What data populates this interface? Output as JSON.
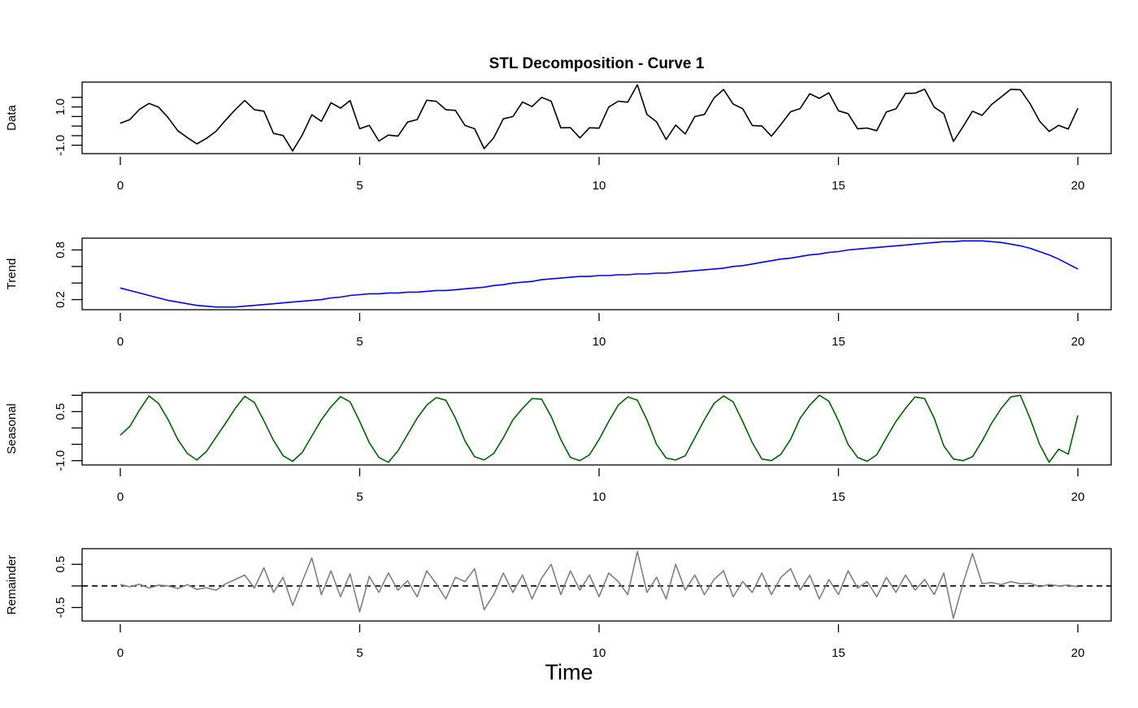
{
  "chart_data": {
    "type": "line",
    "title": "STL Decomposition - Curve 1",
    "xlabel": "Time",
    "x": {
      "start": 0,
      "step": 0.2,
      "count": 101
    },
    "xlim": [
      0,
      20
    ],
    "xticks": [
      0,
      5,
      10,
      15,
      20
    ],
    "xtick_labels": [
      "0",
      "5",
      "10",
      "15",
      "20"
    ],
    "panels": [
      {
        "name": "Data",
        "ylabel": "Data",
        "color": "#000000",
        "yticks": [
          -1.0,
          -0.5,
          0.0,
          0.5,
          1.0,
          1.5
        ],
        "ytick_labels": [
          {
            "value": -1.0,
            "text": "-1.0"
          },
          {
            "value": 1.0,
            "text": "1.0"
          }
        ]
      },
      {
        "name": "Trend",
        "ylabel": "Trend",
        "color": "#0000FF",
        "yticks": [
          0.2,
          0.4,
          0.6,
          0.8
        ],
        "ytick_labels": [
          {
            "value": 0.2,
            "text": "0.2"
          },
          {
            "value": 0.8,
            "text": "0.8"
          }
        ],
        "values": [
          0.34,
          0.31,
          0.28,
          0.25,
          0.22,
          0.19,
          0.17,
          0.15,
          0.13,
          0.12,
          0.11,
          0.11,
          0.11,
          0.12,
          0.13,
          0.14,
          0.15,
          0.16,
          0.17,
          0.18,
          0.19,
          0.2,
          0.22,
          0.23,
          0.25,
          0.26,
          0.27,
          0.27,
          0.28,
          0.28,
          0.29,
          0.29,
          0.3,
          0.31,
          0.31,
          0.32,
          0.33,
          0.34,
          0.35,
          0.37,
          0.38,
          0.4,
          0.41,
          0.42,
          0.44,
          0.45,
          0.46,
          0.47,
          0.48,
          0.48,
          0.49,
          0.49,
          0.5,
          0.5,
          0.51,
          0.51,
          0.52,
          0.52,
          0.53,
          0.54,
          0.55,
          0.56,
          0.57,
          0.58,
          0.6,
          0.61,
          0.63,
          0.65,
          0.67,
          0.69,
          0.7,
          0.72,
          0.74,
          0.75,
          0.77,
          0.78,
          0.8,
          0.81,
          0.82,
          0.83,
          0.84,
          0.85,
          0.86,
          0.87,
          0.88,
          0.89,
          0.9,
          0.9,
          0.91,
          0.91,
          0.91,
          0.9,
          0.89,
          0.87,
          0.85,
          0.82,
          0.78,
          0.74,
          0.69,
          0.63,
          0.57
        ]
      },
      {
        "name": "Seasonal",
        "ylabel": "Seasonal",
        "color": "#006400",
        "yticks": [
          -1.0,
          -0.5,
          0.0,
          0.5,
          1.0
        ],
        "ytick_labels": [
          {
            "value": -1.0,
            "text": "-1.0"
          },
          {
            "value": 0.5,
            "text": "0.5"
          }
        ],
        "values": [
          -0.22,
          0.05,
          0.55,
          0.98,
          0.75,
          0.25,
          -0.35,
          -0.78,
          -0.98,
          -0.72,
          -0.28,
          0.15,
          0.6,
          0.97,
          0.78,
          0.22,
          -0.38,
          -0.85,
          -1.02,
          -0.75,
          -0.25,
          0.25,
          0.65,
          0.96,
          0.8,
          0.2,
          -0.45,
          -0.9,
          -1.05,
          -0.7,
          -0.2,
          0.3,
          0.7,
          0.93,
          0.85,
          0.3,
          -0.4,
          -0.88,
          -0.98,
          -0.78,
          -0.3,
          0.25,
          0.6,
          0.9,
          0.88,
          0.35,
          -0.35,
          -0.9,
          -1.0,
          -0.82,
          -0.35,
          0.2,
          0.7,
          0.95,
          0.85,
          0.25,
          -0.5,
          -0.92,
          -0.98,
          -0.85,
          -0.3,
          0.25,
          0.75,
          0.98,
          0.8,
          0.2,
          -0.45,
          -0.95,
          -1.0,
          -0.8,
          -0.35,
          0.3,
          0.7,
          1.0,
          0.82,
          0.22,
          -0.5,
          -0.9,
          -1.02,
          -0.82,
          -0.3,
          0.2,
          0.6,
          0.95,
          0.9,
          0.3,
          -0.55,
          -0.95,
          -1.0,
          -0.88,
          -0.4,
          0.15,
          0.6,
          0.95,
          1.0,
          0.3,
          -0.5,
          -1.05,
          -0.65,
          -0.8,
          0.38
        ]
      },
      {
        "name": "Remainder",
        "ylabel": "Remainder",
        "color": "#808080",
        "yticks": [
          -0.5,
          0.0,
          0.5
        ],
        "ytick_labels": [
          {
            "value": -0.5,
            "text": "-0.5"
          },
          {
            "value": 0.5,
            "text": "0.5"
          }
        ],
        "reference_line": 0,
        "values": [
          0.03,
          -0.02,
          0.04,
          -0.05,
          0.02,
          0.0,
          -0.06,
          0.03,
          -0.08,
          -0.04,
          -0.1,
          0.05,
          0.15,
          0.25,
          -0.05,
          0.42,
          -0.15,
          0.2,
          -0.45,
          0.1,
          0.65,
          -0.2,
          0.35,
          -0.25,
          0.28,
          -0.6,
          0.22,
          -0.15,
          0.3,
          -0.1,
          0.12,
          -0.25,
          0.35,
          0.05,
          -0.3,
          0.2,
          0.1,
          0.4,
          -0.55,
          -0.2,
          0.3,
          -0.15,
          0.25,
          -0.3,
          0.18,
          0.5,
          -0.2,
          0.35,
          -0.1,
          0.25,
          -0.25,
          0.3,
          0.1,
          -0.2,
          0.8,
          -0.15,
          0.2,
          -0.3,
          0.5,
          -0.1,
          0.25,
          -0.2,
          0.15,
          0.35,
          -0.25,
          0.1,
          -0.15,
          0.3,
          -0.2,
          0.2,
          0.4,
          -0.1,
          0.25,
          -0.3,
          0.15,
          -0.2,
          0.35,
          -0.05,
          0.1,
          -0.25,
          0.2,
          -0.15,
          0.25,
          -0.1,
          0.15,
          -0.2,
          0.3,
          -0.75,
          0.05,
          0.75,
          0.05,
          0.08,
          0.03,
          0.1,
          0.05,
          0.06,
          -0.02,
          0.03,
          0.0,
          0.02,
          -0.02
        ]
      }
    ]
  }
}
